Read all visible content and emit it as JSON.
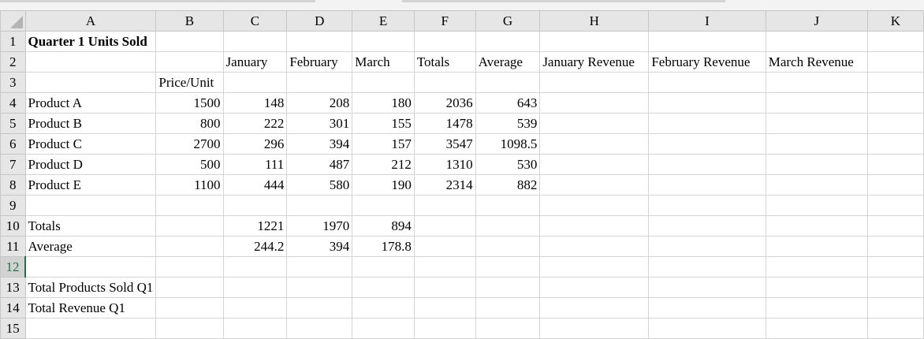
{
  "columns": [
    "A",
    "B",
    "C",
    "D",
    "E",
    "F",
    "G",
    "H",
    "I",
    "J",
    "K"
  ],
  "selected_row": 12,
  "rows": [
    {
      "n": "1",
      "cells": [
        "Quarter 1 Units Sold",
        "",
        "",
        "",
        "",
        "",
        "",
        "",
        "",
        "",
        ""
      ]
    },
    {
      "n": "2",
      "cells": [
        "",
        "",
        "January",
        "February",
        "March",
        "Totals",
        "Average",
        "January Revenue",
        "February Revenue",
        "March Revenue",
        ""
      ]
    },
    {
      "n": "3",
      "cells": [
        "",
        "Price/Unit",
        "",
        "",
        "",
        "",
        "",
        "",
        "",
        "",
        ""
      ]
    },
    {
      "n": "4",
      "cells": [
        "Product A",
        "1500",
        "148",
        "208",
        "180",
        "2036",
        "643",
        "",
        "",
        "",
        ""
      ]
    },
    {
      "n": "5",
      "cells": [
        "Product B",
        "800",
        "222",
        "301",
        "155",
        "1478",
        "539",
        "",
        "",
        "",
        ""
      ]
    },
    {
      "n": "6",
      "cells": [
        "Product C",
        "2700",
        "296",
        "394",
        "157",
        "3547",
        "1098.5",
        "",
        "",
        "",
        ""
      ]
    },
    {
      "n": "7",
      "cells": [
        "Product D",
        "500",
        "111",
        "487",
        "212",
        "1310",
        "530",
        "",
        "",
        "",
        ""
      ]
    },
    {
      "n": "8",
      "cells": [
        "Product E",
        "1100",
        "444",
        "580",
        "190",
        "2314",
        "882",
        "",
        "",
        "",
        ""
      ]
    },
    {
      "n": "9",
      "cells": [
        "",
        "",
        "",
        "",
        "",
        "",
        "",
        "",
        "",
        "",
        ""
      ]
    },
    {
      "n": "10",
      "cells": [
        "Totals",
        "",
        "1221",
        "1970",
        "894",
        "",
        "",
        "",
        "",
        "",
        ""
      ]
    },
    {
      "n": "11",
      "cells": [
        "Average",
        "",
        "244.2",
        "394",
        "178.8",
        "",
        "",
        "",
        "",
        "",
        ""
      ]
    },
    {
      "n": "12",
      "cells": [
        "",
        "",
        "",
        "",
        "",
        "",
        "",
        "",
        "",
        "",
        ""
      ]
    },
    {
      "n": "13",
      "cells": [
        "Total Products Sold Q1",
        "",
        "",
        "",
        "",
        "",
        "",
        "",
        "",
        "",
        ""
      ]
    },
    {
      "n": "14",
      "cells": [
        "Total Revenue Q1",
        "",
        "",
        "",
        "",
        "",
        "",
        "",
        "",
        "",
        ""
      ]
    },
    {
      "n": "15",
      "cells": [
        "",
        "",
        "",
        "",
        "",
        "",
        "",
        "",
        "",
        "",
        ""
      ]
    }
  ]
}
